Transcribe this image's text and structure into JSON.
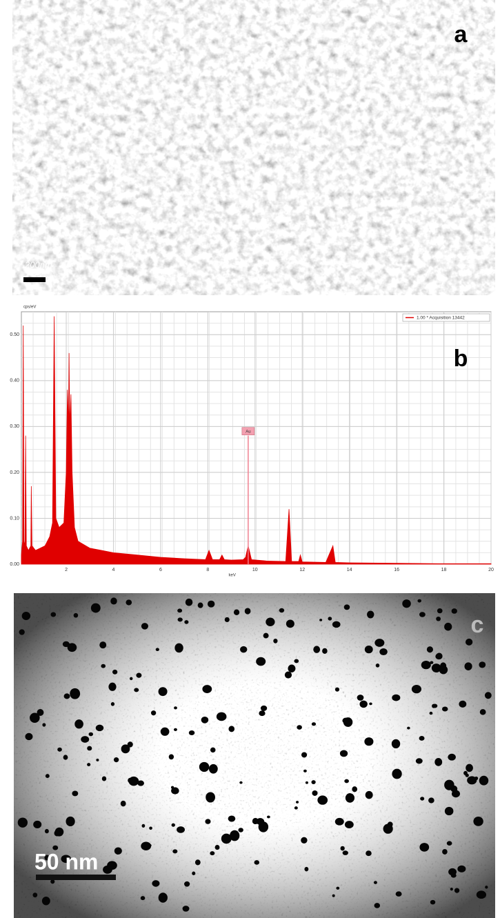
{
  "panel_a": {
    "label": "a",
    "scale_bar": "200nm"
  },
  "chart_data": {
    "type": "area",
    "panel_label": "b",
    "ylabel": "cps/eV",
    "xlabel": "keV",
    "x": [
      0.1,
      0.15,
      0.18,
      0.21,
      0.25,
      0.28,
      0.31,
      0.4,
      0.5,
      0.52,
      0.55,
      0.7,
      0.9,
      1.1,
      1.3,
      1.42,
      1.49,
      1.56,
      1.7,
      1.9,
      2.0,
      2.05,
      2.1,
      2.12,
      2.15,
      2.2,
      2.25,
      2.35,
      2.5,
      3,
      3.5,
      4,
      5,
      6,
      7,
      7.9,
      8.05,
      8.2,
      8.5,
      8.6,
      8.7,
      9,
      9.5,
      9.6,
      9.71,
      9.85,
      10.5,
      11.3,
      11.44,
      11.55,
      11.85,
      11.92,
      12,
      13,
      13.3,
      13.4,
      14,
      16,
      18,
      20
    ],
    "series": [
      {
        "name": "1.00 * Acquisition 13442",
        "color": "#e00000",
        "values": [
          0.02,
          0.05,
          0.52,
          0.05,
          0.04,
          0.28,
          0.04,
          0.03,
          0.04,
          0.17,
          0.04,
          0.03,
          0.035,
          0.04,
          0.06,
          0.09,
          0.54,
          0.1,
          0.08,
          0.09,
          0.2,
          0.38,
          0.3,
          0.46,
          0.3,
          0.37,
          0.2,
          0.08,
          0.05,
          0.035,
          0.03,
          0.025,
          0.02,
          0.015,
          0.012,
          0.01,
          0.03,
          0.01,
          0.01,
          0.02,
          0.01,
          0.009,
          0.01,
          0.015,
          0.04,
          0.01,
          0.007,
          0.006,
          0.12,
          0.006,
          0.006,
          0.02,
          0.005,
          0.004,
          0.04,
          0.004,
          0.003,
          0.002,
          0.001,
          0.001
        ]
      }
    ],
    "markers": [
      {
        "x": 9.71,
        "y": 0.28,
        "label": "Au"
      }
    ],
    "xlim": [
      0.1,
      20
    ],
    "xticks": [
      2,
      4,
      6,
      8,
      10,
      12,
      14,
      16,
      18,
      20
    ],
    "ylim": [
      0,
      0.55
    ],
    "yticks": [
      {
        "value": 0,
        "label": "0.00"
      },
      {
        "value": 0.1,
        "label": "0.10"
      },
      {
        "value": 0.2,
        "label": "0.20"
      },
      {
        "value": 0.3,
        "label": "0.30"
      },
      {
        "value": 0.4,
        "label": "0.40"
      },
      {
        "value": 0.5,
        "label": "0.50"
      }
    ],
    "grid": true,
    "legend": "upper right"
  },
  "panel_c": {
    "label": "c",
    "scale_bar": "50 nm"
  }
}
